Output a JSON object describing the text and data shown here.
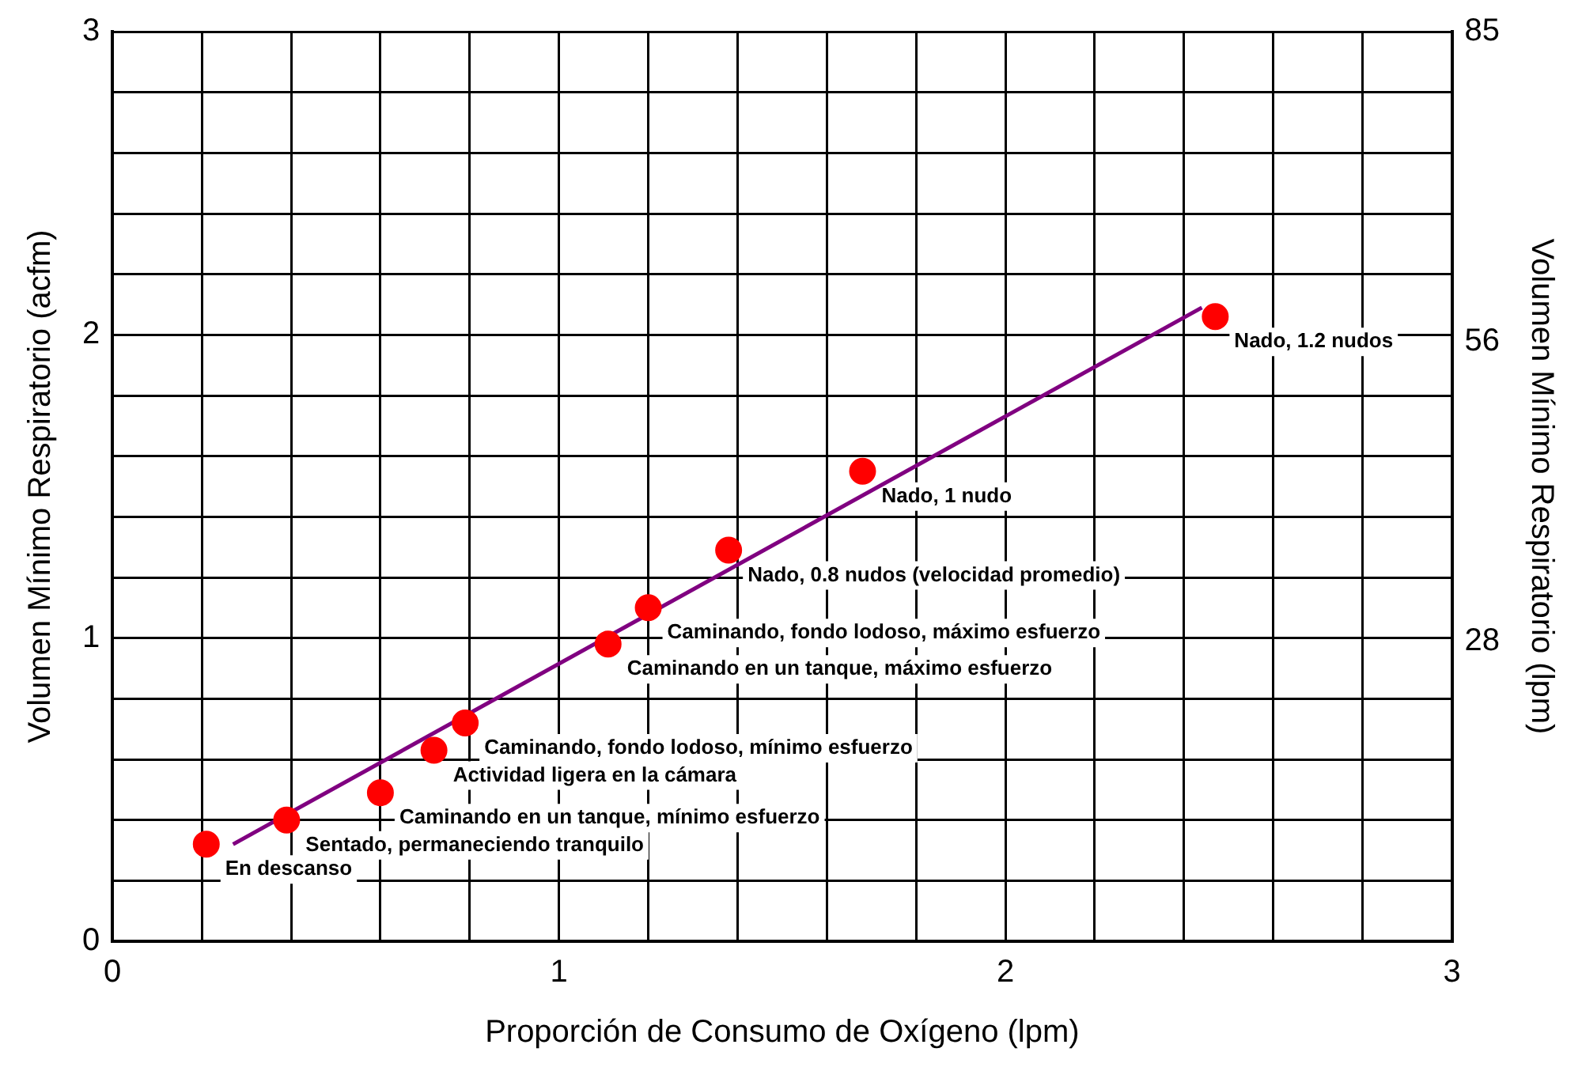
{
  "chart_data": {
    "type": "scatter",
    "xlabel": "Proporción de Consumo de Oxígeno (lpm)",
    "ylabel": "Volumen Mínimo Respiratorio (acfm)",
    "y2label": "Volumen Mínimo Respiratorio (lpm)",
    "xlim": [
      0,
      3
    ],
    "ylim": [
      0,
      3
    ],
    "y2lim": [
      0,
      85
    ],
    "xticks": [
      0,
      {
        "value": 0.2,
        "label": null
      },
      {
        "value": 0.4,
        "label": null
      },
      {
        "value": 0.6,
        "label": null
      },
      {
        "value": 0.8,
        "label": null
      },
      1,
      {
        "value": 1.2,
        "label": null
      },
      {
        "value": 1.4,
        "label": null
      },
      {
        "value": 1.6,
        "label": null
      },
      {
        "value": 1.8,
        "label": null
      },
      2,
      {
        "value": 2.2,
        "label": null
      },
      {
        "value": 2.4,
        "label": null
      },
      {
        "value": 2.6,
        "label": null
      },
      {
        "value": 2.8,
        "label": null
      },
      3
    ],
    "yticks": [
      0,
      {
        "value": 0.2,
        "label": null
      },
      {
        "value": 0.4,
        "label": null
      },
      {
        "value": 0.6,
        "label": null
      },
      {
        "value": 0.8,
        "label": null
      },
      1,
      {
        "value": 1.2,
        "label": null
      },
      {
        "value": 1.4,
        "label": null
      },
      {
        "value": 1.6,
        "label": null
      },
      {
        "value": 1.8,
        "label": null
      },
      2,
      {
        "value": 2.2,
        "label": null
      },
      {
        "value": 2.4,
        "label": null
      },
      {
        "value": 2.6,
        "label": null
      },
      {
        "value": 2.8,
        "label": null
      },
      3
    ],
    "y2ticks": [
      28,
      56,
      85
    ],
    "grid": true,
    "legend": false,
    "series": [
      {
        "type": "scatter",
        "color": "#ff0000",
        "marker": "circle",
        "x": [
          0.21,
          0.39,
          0.6,
          0.72,
          0.79,
          1.11,
          1.2,
          1.38,
          1.68,
          2.47
        ],
        "values": [
          0.32,
          0.4,
          0.49,
          0.63,
          0.72,
          0.98,
          1.1,
          1.29,
          1.55,
          2.06
        ]
      },
      {
        "type": "line",
        "color": "#800080",
        "marker": "none",
        "x": [
          0.27,
          2.44
        ],
        "values": [
          0.32,
          2.09
        ]
      }
    ],
    "annotations": [
      {
        "text": "En descanso",
        "x": 0.21,
        "y": 0.32
      },
      {
        "text": "Sentado, permaneciendo tranquilo",
        "x": 0.39,
        "y": 0.4
      },
      {
        "text": "Caminando en un tanque, mínimo esfuerzo",
        "x": 0.6,
        "y": 0.49
      },
      {
        "text": "Actividad ligera en la cámara",
        "x": 0.72,
        "y": 0.63
      },
      {
        "text": "Caminando, fondo lodoso, mínimo esfuerzo",
        "x": 0.79,
        "y": 0.72
      },
      {
        "text": "Caminando en un tanque, máximo esfuerzo",
        "x": 1.11,
        "y": 0.98
      },
      {
        "text": "Caminando, fondo lodoso, máximo esfuerzo",
        "x": 1.2,
        "y": 1.1
      },
      {
        "text": "Nado, 0.8 nudos (velocidad promedio)",
        "x": 1.38,
        "y": 1.29
      },
      {
        "text": "Nado, 1 nudo",
        "x": 1.68,
        "y": 1.55
      },
      {
        "text": "Nado, 1.2 nudos",
        "x": 2.47,
        "y": 2.06
      }
    ]
  }
}
